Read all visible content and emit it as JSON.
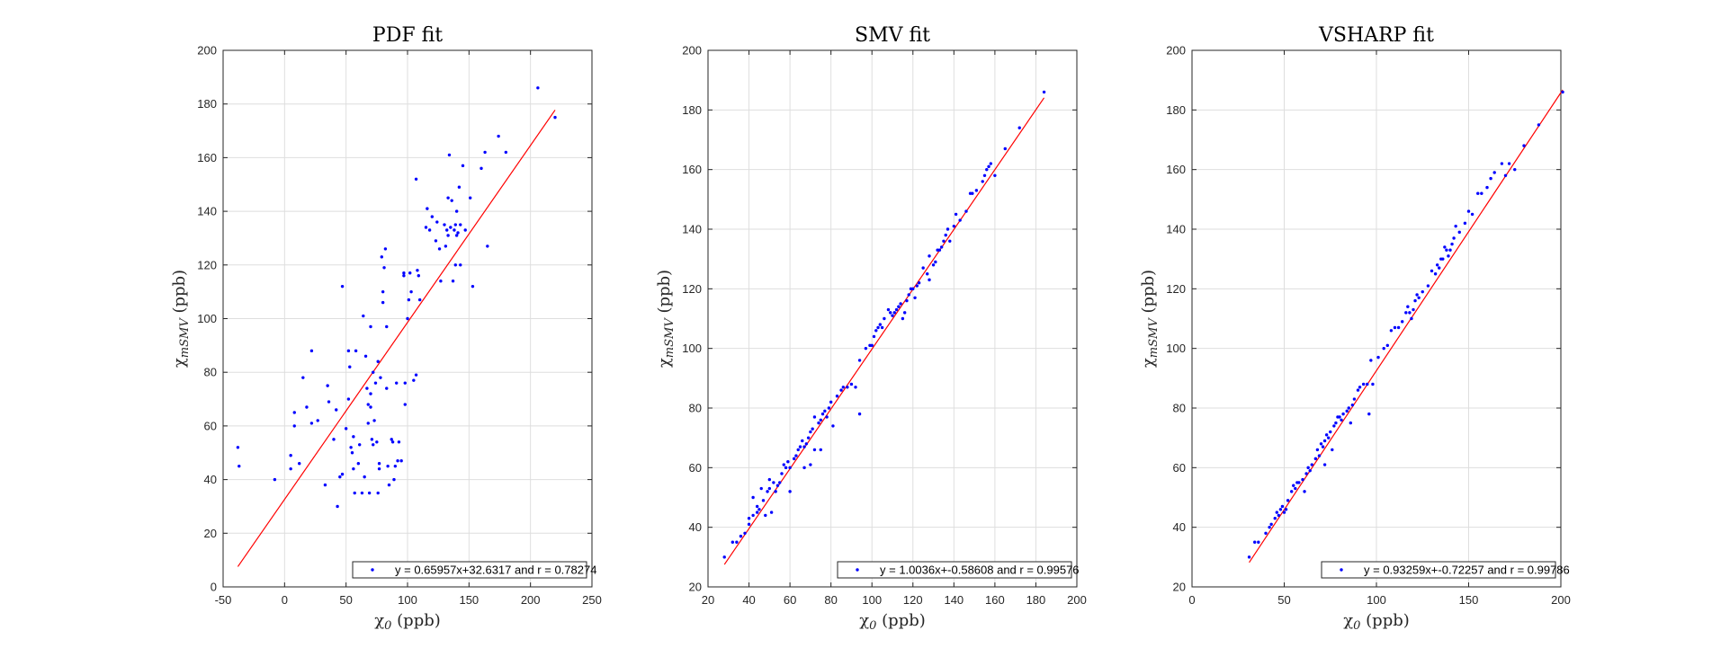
{
  "chart_data": [
    {
      "type": "scatter",
      "title": "PDF fit",
      "xlabel": "χ0 (ppb)",
      "ylabel": "χmSMV (ppb)",
      "xlim": [
        -50,
        250
      ],
      "ylim": [
        0,
        200
      ],
      "xticks": [
        -50,
        0,
        50,
        100,
        150,
        200,
        250
      ],
      "yticks": [
        0,
        20,
        40,
        60,
        80,
        100,
        120,
        140,
        160,
        180,
        200
      ],
      "grid": true,
      "legend": "y = 0.65957x+32.6317 and r = 0.78274",
      "legend_position": "bottom-right",
      "fit": {
        "slope": 0.65957,
        "intercept": 32.6317,
        "x_range": [
          -38,
          220
        ]
      },
      "point_color": "#0000ff",
      "line_color": "#ff0000",
      "points": [
        [
          -38,
          52
        ],
        [
          -37,
          45
        ],
        [
          -8,
          40
        ],
        [
          5,
          44
        ],
        [
          5,
          49
        ],
        [
          8,
          60
        ],
        [
          8,
          65
        ],
        [
          12,
          46
        ],
        [
          15,
          78
        ],
        [
          18,
          67
        ],
        [
          22,
          88
        ],
        [
          22,
          61
        ],
        [
          27,
          62
        ],
        [
          33,
          38
        ],
        [
          35,
          75
        ],
        [
          36,
          69
        ],
        [
          40,
          55
        ],
        [
          42,
          66
        ],
        [
          43,
          30
        ],
        [
          45,
          41
        ],
        [
          47,
          42
        ],
        [
          47,
          112
        ],
        [
          50,
          59
        ],
        [
          52,
          88
        ],
        [
          52,
          70
        ],
        [
          53,
          82
        ],
        [
          54,
          52
        ],
        [
          55,
          50
        ],
        [
          56,
          44
        ],
        [
          56,
          56
        ],
        [
          57,
          35
        ],
        [
          58,
          88
        ],
        [
          60,
          46
        ],
        [
          61,
          53
        ],
        [
          63,
          35
        ],
        [
          64,
          101
        ],
        [
          65,
          41
        ],
        [
          66,
          86
        ],
        [
          67,
          74
        ],
        [
          68,
          61
        ],
        [
          68,
          68
        ],
        [
          69,
          35
        ],
        [
          70,
          67
        ],
        [
          70,
          97
        ],
        [
          70,
          72
        ],
        [
          71,
          55
        ],
        [
          72,
          53
        ],
        [
          72,
          80
        ],
        [
          73,
          62
        ],
        [
          74,
          76
        ],
        [
          75,
          54
        ],
        [
          76,
          84
        ],
        [
          76,
          35
        ],
        [
          77,
          46
        ],
        [
          77,
          44
        ],
        [
          78,
          78
        ],
        [
          79,
          123
        ],
        [
          80,
          110
        ],
        [
          80,
          106
        ],
        [
          81,
          119
        ],
        [
          82,
          126
        ],
        [
          83,
          97
        ],
        [
          83,
          74
        ],
        [
          84,
          45
        ],
        [
          85,
          38
        ],
        [
          87,
          55
        ],
        [
          88,
          54
        ],
        [
          89,
          40
        ],
        [
          90,
          45
        ],
        [
          91,
          76
        ],
        [
          92,
          47
        ],
        [
          93,
          54
        ],
        [
          95,
          47
        ],
        [
          97,
          117
        ],
        [
          97,
          116
        ],
        [
          98,
          68
        ],
        [
          98,
          76
        ],
        [
          100,
          100
        ],
        [
          101,
          107
        ],
        [
          102,
          117
        ],
        [
          103,
          110
        ],
        [
          105,
          77
        ],
        [
          107,
          79
        ],
        [
          107,
          152
        ],
        [
          108,
          118
        ],
        [
          109,
          116
        ],
        [
          110,
          107
        ],
        [
          115,
          134
        ],
        [
          116,
          141
        ],
        [
          118,
          133
        ],
        [
          120,
          138
        ],
        [
          123,
          129
        ],
        [
          124,
          136
        ],
        [
          126,
          126
        ],
        [
          127,
          114
        ],
        [
          130,
          135
        ],
        [
          131,
          127
        ],
        [
          132,
          133
        ],
        [
          133,
          131
        ],
        [
          133,
          145
        ],
        [
          134,
          161
        ],
        [
          135,
          134
        ],
        [
          136,
          144
        ],
        [
          137,
          114
        ],
        [
          138,
          133
        ],
        [
          139,
          135
        ],
        [
          139,
          120
        ],
        [
          140,
          131
        ],
        [
          140,
          140
        ],
        [
          141,
          132
        ],
        [
          142,
          149
        ],
        [
          143,
          120
        ],
        [
          143,
          135
        ],
        [
          145,
          157
        ],
        [
          147,
          133
        ],
        [
          151,
          145
        ],
        [
          153,
          112
        ],
        [
          160,
          156
        ],
        [
          163,
          162
        ],
        [
          165,
          127
        ],
        [
          174,
          168
        ],
        [
          180,
          162
        ],
        [
          206,
          186
        ],
        [
          220,
          175
        ]
      ]
    },
    {
      "type": "scatter",
      "title": "SMV fit",
      "xlabel": "χ0 (ppb)",
      "ylabel": "χmSMV (ppb)",
      "xlim": [
        20,
        200
      ],
      "ylim": [
        20,
        200
      ],
      "xticks": [
        20,
        40,
        60,
        80,
        100,
        120,
        140,
        160,
        180,
        200
      ],
      "yticks": [
        20,
        40,
        60,
        80,
        100,
        120,
        140,
        160,
        180,
        200
      ],
      "grid": true,
      "legend": "y = 1.0036x+-0.58608 and r = 0.99576",
      "legend_position": "bottom-right",
      "fit": {
        "slope": 1.0036,
        "intercept": -0.58608,
        "x_range": [
          28,
          184
        ]
      },
      "point_color": "#0000ff",
      "line_color": "#ff0000",
      "points": [
        [
          28,
          30
        ],
        [
          32,
          35
        ],
        [
          34,
          35
        ],
        [
          36,
          37
        ],
        [
          38,
          38
        ],
        [
          40,
          41
        ],
        [
          40,
          43
        ],
        [
          42,
          44
        ],
        [
          42,
          50
        ],
        [
          44,
          45
        ],
        [
          44,
          47
        ],
        [
          45,
          46
        ],
        [
          46,
          53
        ],
        [
          47,
          49
        ],
        [
          48,
          44
        ],
        [
          49,
          52
        ],
        [
          50,
          53
        ],
        [
          50,
          56
        ],
        [
          51,
          45
        ],
        [
          52,
          55
        ],
        [
          53,
          52
        ],
        [
          54,
          54
        ],
        [
          55,
          55
        ],
        [
          56,
          58
        ],
        [
          57,
          61
        ],
        [
          58,
          60
        ],
        [
          59,
          62
        ],
        [
          60,
          52
        ],
        [
          60,
          60
        ],
        [
          62,
          63
        ],
        [
          63,
          64
        ],
        [
          64,
          66
        ],
        [
          65,
          67
        ],
        [
          66,
          69
        ],
        [
          67,
          60
        ],
        [
          67,
          67
        ],
        [
          68,
          68
        ],
        [
          69,
          70
        ],
        [
          70,
          72
        ],
        [
          70,
          61
        ],
        [
          71,
          73
        ],
        [
          72,
          77
        ],
        [
          72,
          66
        ],
        [
          74,
          75
        ],
        [
          75,
          76
        ],
        [
          75,
          66
        ],
        [
          76,
          78
        ],
        [
          77,
          79
        ],
        [
          78,
          77
        ],
        [
          79,
          80
        ],
        [
          80,
          82
        ],
        [
          81,
          74
        ],
        [
          83,
          84
        ],
        [
          85,
          86
        ],
        [
          86,
          87
        ],
        [
          88,
          87
        ],
        [
          90,
          88
        ],
        [
          92,
          87
        ],
        [
          94,
          78
        ],
        [
          94,
          96
        ],
        [
          97,
          100
        ],
        [
          99,
          101
        ],
        [
          100,
          101
        ],
        [
          101,
          104
        ],
        [
          102,
          106
        ],
        [
          103,
          107
        ],
        [
          104,
          108
        ],
        [
          105,
          107
        ],
        [
          106,
          110
        ],
        [
          108,
          113
        ],
        [
          109,
          112
        ],
        [
          110,
          111
        ],
        [
          111,
          112
        ],
        [
          112,
          113
        ],
        [
          113,
          114
        ],
        [
          114,
          115
        ],
        [
          115,
          110
        ],
        [
          116,
          112
        ],
        [
          117,
          116
        ],
        [
          118,
          118
        ],
        [
          119,
          120
        ],
        [
          120,
          120
        ],
        [
          121,
          117
        ],
        [
          122,
          121
        ],
        [
          123,
          122
        ],
        [
          125,
          127
        ],
        [
          127,
          125
        ],
        [
          128,
          131
        ],
        [
          128,
          123
        ],
        [
          130,
          128
        ],
        [
          131,
          129
        ],
        [
          132,
          133
        ],
        [
          133,
          133
        ],
        [
          134,
          134
        ],
        [
          135,
          136
        ],
        [
          136,
          138
        ],
        [
          137,
          140
        ],
        [
          138,
          136
        ],
        [
          140,
          141
        ],
        [
          141,
          145
        ],
        [
          143,
          143
        ],
        [
          146,
          146
        ],
        [
          148,
          152
        ],
        [
          149,
          152
        ],
        [
          151,
          153
        ],
        [
          154,
          156
        ],
        [
          155,
          158
        ],
        [
          156,
          160
        ],
        [
          157,
          161
        ],
        [
          158,
          162
        ],
        [
          160,
          158
        ],
        [
          165,
          167
        ],
        [
          172,
          174
        ],
        [
          184,
          186
        ]
      ]
    },
    {
      "type": "scatter",
      "title": "VSHARP fit",
      "xlabel": "χ0 (ppb)",
      "ylabel": "χmSMV (ppb)",
      "xlim": [
        0,
        200
      ],
      "ylim": [
        20,
        200
      ],
      "xticks": [
        0,
        50,
        100,
        150,
        200
      ],
      "yticks": [
        20,
        40,
        60,
        80,
        100,
        120,
        140,
        160,
        180,
        200
      ],
      "grid": true,
      "legend": "y = 0.93259x+-0.72257 and r = 0.99786",
      "legend_position": "bottom-right",
      "fit": {
        "slope": 0.93259,
        "intercept": -0.72257,
        "x_range": [
          31,
          201
        ]
      },
      "point_color": "#0000ff",
      "line_color": "#ff0000",
      "points": [
        [
          31,
          30
        ],
        [
          34,
          35
        ],
        [
          36,
          35
        ],
        [
          40,
          38
        ],
        [
          42,
          40
        ],
        [
          43,
          41
        ],
        [
          45,
          43
        ],
        [
          46,
          45
        ],
        [
          47,
          44
        ],
        [
          48,
          46
        ],
        [
          49,
          47
        ],
        [
          50,
          45
        ],
        [
          51,
          46
        ],
        [
          52,
          49
        ],
        [
          54,
          52
        ],
        [
          55,
          54
        ],
        [
          56,
          53
        ],
        [
          57,
          55
        ],
        [
          58,
          55
        ],
        [
          60,
          56
        ],
        [
          61,
          52
        ],
        [
          62,
          58
        ],
        [
          63,
          60
        ],
        [
          64,
          59
        ],
        [
          65,
          61
        ],
        [
          67,
          63
        ],
        [
          68,
          66
        ],
        [
          69,
          64
        ],
        [
          70,
          68
        ],
        [
          71,
          67
        ],
        [
          72,
          61
        ],
        [
          72,
          69
        ],
        [
          73,
          71
        ],
        [
          74,
          70
        ],
        [
          75,
          72
        ],
        [
          76,
          66
        ],
        [
          77,
          74
        ],
        [
          78,
          75
        ],
        [
          79,
          77
        ],
        [
          80,
          77
        ],
        [
          81,
          76
        ],
        [
          82,
          78
        ],
        [
          84,
          79
        ],
        [
          85,
          80
        ],
        [
          86,
          75
        ],
        [
          87,
          81
        ],
        [
          88,
          83
        ],
        [
          90,
          86
        ],
        [
          91,
          87
        ],
        [
          93,
          88
        ],
        [
          95,
          88
        ],
        [
          96,
          78
        ],
        [
          97,
          96
        ],
        [
          98,
          88
        ],
        [
          101,
          97
        ],
        [
          104,
          100
        ],
        [
          106,
          101
        ],
        [
          108,
          106
        ],
        [
          110,
          107
        ],
        [
          112,
          107
        ],
        [
          114,
          109
        ],
        [
          116,
          112
        ],
        [
          117,
          114
        ],
        [
          118,
          112
        ],
        [
          119,
          110
        ],
        [
          120,
          113
        ],
        [
          121,
          116
        ],
        [
          122,
          118
        ],
        [
          123,
          117
        ],
        [
          125,
          119
        ],
        [
          128,
          121
        ],
        [
          130,
          126
        ],
        [
          132,
          125
        ],
        [
          133,
          128
        ],
        [
          134,
          127
        ],
        [
          135,
          130
        ],
        [
          136,
          130
        ],
        [
          137,
          134
        ],
        [
          138,
          133
        ],
        [
          139,
          131
        ],
        [
          140,
          133
        ],
        [
          141,
          135
        ],
        [
          142,
          137
        ],
        [
          143,
          141
        ],
        [
          145,
          139
        ],
        [
          148,
          142
        ],
        [
          150,
          146
        ],
        [
          152,
          145
        ],
        [
          155,
          152
        ],
        [
          157,
          152
        ],
        [
          160,
          154
        ],
        [
          162,
          157
        ],
        [
          164,
          159
        ],
        [
          168,
          162
        ],
        [
          170,
          158
        ],
        [
          172,
          162
        ],
        [
          175,
          160
        ],
        [
          180,
          168
        ],
        [
          188,
          175
        ],
        [
          201,
          186
        ]
      ]
    }
  ]
}
